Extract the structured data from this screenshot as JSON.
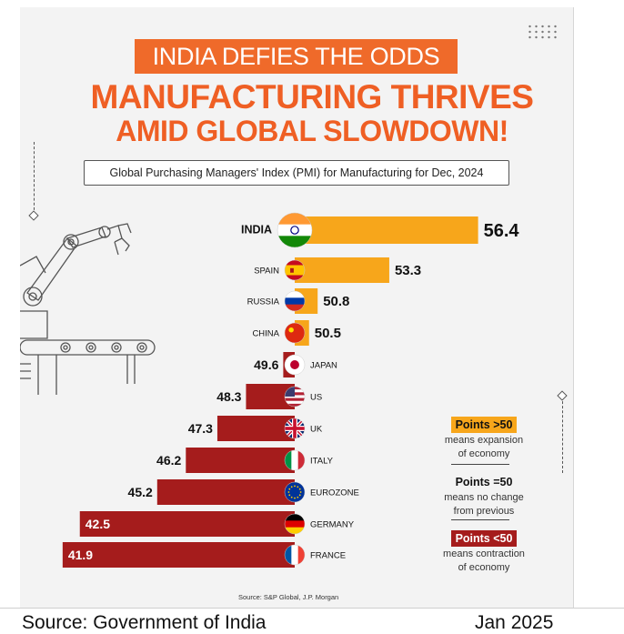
{
  "header": {
    "banner": "INDIA DEFIES THE ODDS",
    "headline_line1": "MANUFACTURING THRIVES",
    "headline_line2": "AMID GLOBAL SLOWDOWN!",
    "subtitle": "Global Purchasing Managers' Index (PMI) for Manufacturing for Dec, 2024"
  },
  "chart_data": {
    "type": "bar",
    "orientation": "horizontal",
    "baseline": 50,
    "title": "Global Purchasing Managers' Index (PMI) for Manufacturing for Dec, 2024",
    "categories": [
      "INDIA",
      "SPAIN",
      "RUSSIA",
      "CHINA",
      "JAPAN",
      "US",
      "UK",
      "ITALY",
      "EUROZONE",
      "GERMANY",
      "FRANCE"
    ],
    "values": [
      56.4,
      53.3,
      50.8,
      50.5,
      49.6,
      48.3,
      47.3,
      46.2,
      45.2,
      42.5,
      41.9
    ],
    "value_labels": [
      "56.4",
      "53.3",
      "50.8",
      "50.5",
      "49.6",
      "48.3",
      "47.3",
      "46.2",
      "45.2",
      "42.5",
      "41.9"
    ],
    "colors": {
      "above": "#f7a61b",
      "below": "#a51c1c"
    },
    "flag_icons": [
      "india-flag-icon",
      "spain-flag-icon",
      "russia-flag-icon",
      "china-flag-icon",
      "japan-flag-icon",
      "us-flag-icon",
      "uk-flag-icon",
      "italy-flag-icon",
      "eurozone-flag-icon",
      "germany-flag-icon",
      "france-flag-icon"
    ]
  },
  "legend": [
    {
      "badge": "Points >50",
      "desc_line1": "means expansion",
      "desc_line2": "of economy"
    },
    {
      "badge": "Points =50",
      "desc_line1": "means no change",
      "desc_line2": "from previous"
    },
    {
      "badge": "Points <50",
      "desc_line1": "means contraction",
      "desc_line2": "of economy"
    }
  ],
  "source_note": "Source: S&P Global, J.P. Morgan",
  "caption": {
    "left": "Source: Government of India",
    "right": "Jan 2025"
  },
  "decor": {
    "icons": [
      "robot-arm-icon",
      "conveyor-icon",
      "dots-pattern-icon"
    ]
  }
}
